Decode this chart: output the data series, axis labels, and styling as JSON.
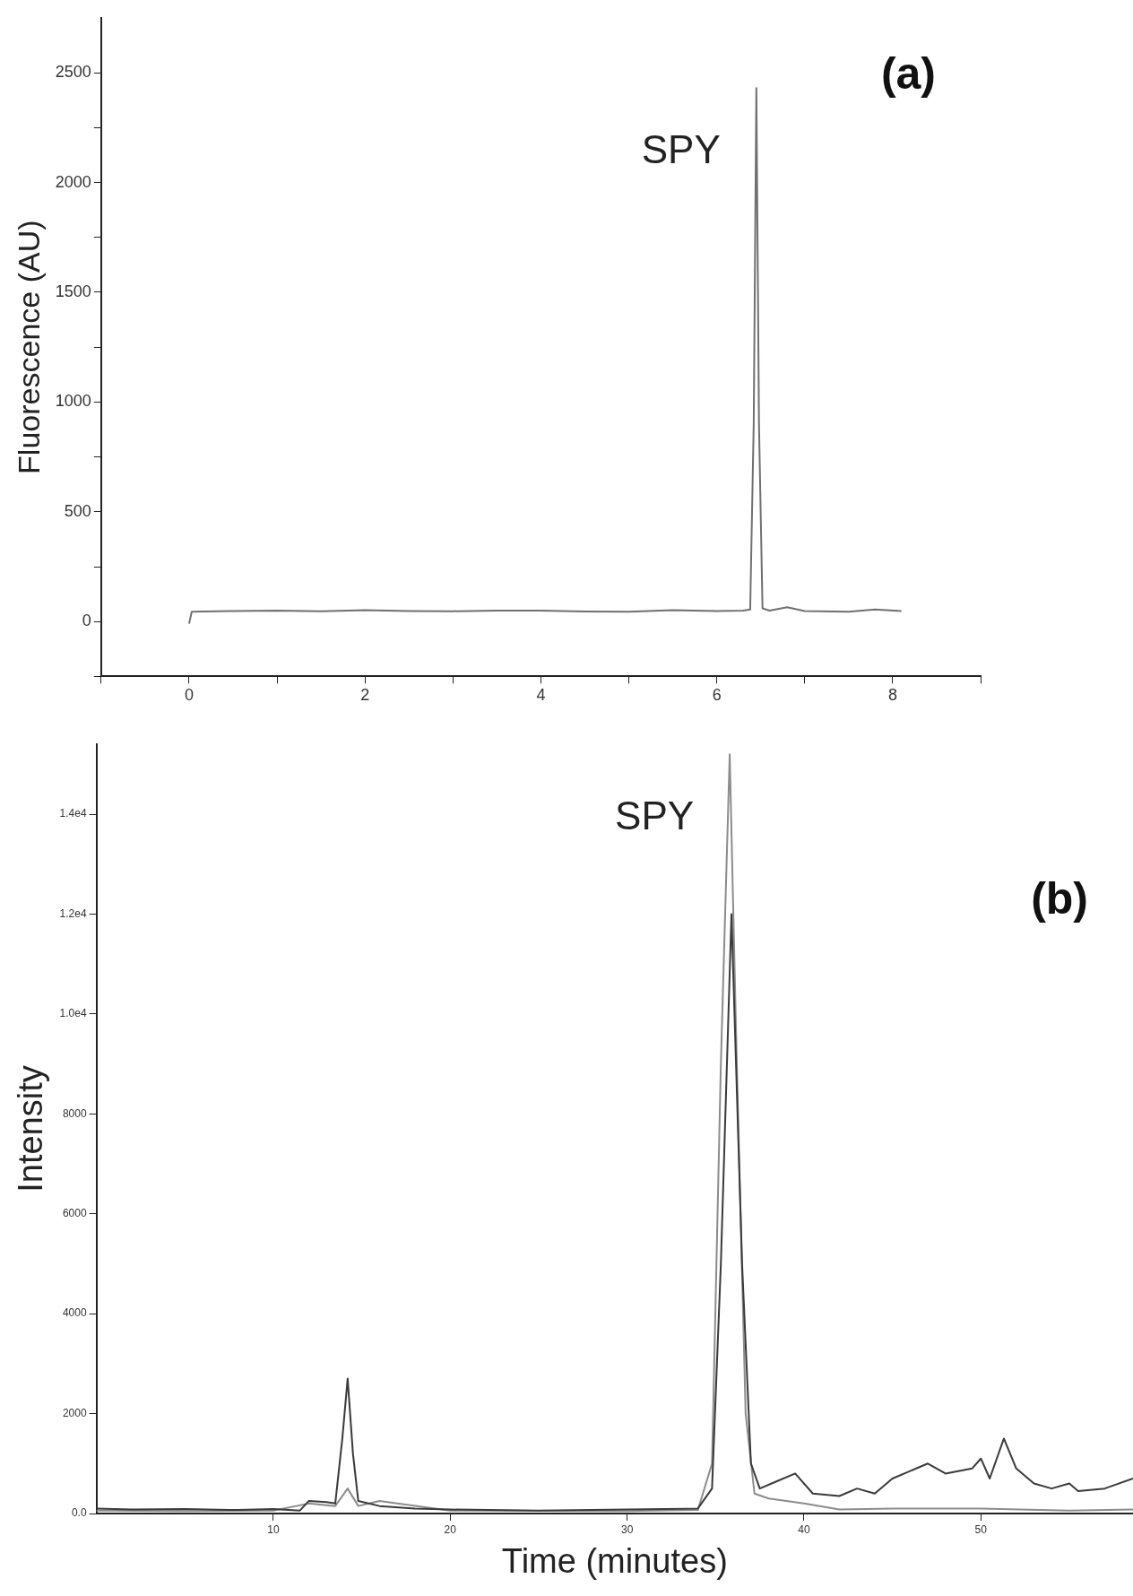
{
  "chart_data": [
    {
      "type": "line",
      "ylabel": "Fluorescence (AU)",
      "annotations": [
        {
          "text": "SPY",
          "x": 6.45,
          "y": 2430
        },
        "(a)"
      ],
      "xlim": [
        -1,
        9
      ],
      "xticks": [
        {
          "value": -1,
          "label": null
        },
        0,
        {
          "value": 1,
          "label": null
        },
        2,
        {
          "value": 3,
          "label": null
        },
        4,
        {
          "value": 5,
          "label": null
        },
        6,
        {
          "value": 7,
          "label": null
        },
        8,
        {
          "value": 9,
          "label": null
        }
      ],
      "ylim": [
        -250,
        2750
      ],
      "yticks": [
        {
          "value": -250,
          "label": null
        },
        0,
        {
          "value": 250,
          "label": null
        },
        500,
        {
          "value": 750,
          "label": null
        },
        1000,
        {
          "value": 1250,
          "label": null
        },
        1500,
        {
          "value": 1750,
          "label": null
        },
        2000,
        {
          "value": 2250,
          "label": null
        },
        2500
      ],
      "grid": false,
      "legend": false,
      "marker": "none",
      "line_style": "solid",
      "series": [
        {
          "color": "#707070",
          "x": [
            0,
            0.03,
            0.5,
            1,
            1.5,
            2,
            2.5,
            3,
            3.5,
            4,
            4.5,
            5,
            5.5,
            6,
            6.3,
            6.38,
            6.42,
            6.45,
            6.48,
            6.52,
            6.6,
            6.8,
            7,
            7.5,
            7.8,
            8.1
          ],
          "values": [
            -10,
            45,
            48,
            50,
            47,
            52,
            48,
            47,
            50,
            50,
            46,
            45,
            52,
            48,
            50,
            55,
            900,
            2430,
            900,
            60,
            50,
            65,
            48,
            45,
            55,
            48
          ]
        }
      ]
    },
    {
      "type": "line",
      "xlabel": "Time (minutes)",
      "ylabel": "Intensity",
      "annotations": [
        {
          "text": "SPY",
          "x": 35.8,
          "y": 15200
        },
        "(b)"
      ],
      "xlim": [
        0,
        58.6
      ],
      "xticks": [
        10,
        20,
        30,
        40,
        50
      ],
      "ylim": [
        0,
        15400
      ],
      "yticks": [
        {
          "value": 0,
          "label": "0.0"
        },
        2000,
        4000,
        6000,
        8000,
        {
          "value": 10000,
          "label": "1.0e4"
        },
        {
          "value": 12000,
          "label": "1.2e4"
        },
        {
          "value": 14000,
          "label": "1.4e4"
        }
      ],
      "grid": false,
      "legend": false,
      "marker": "none",
      "line_style": "solid",
      "series": [
        {
          "color": "#3a3a3a",
          "x": [
            0,
            2,
            5,
            8,
            10,
            11.5,
            12,
            13,
            13.5,
            13.9,
            14.2,
            14.5,
            14.8,
            16,
            18,
            20,
            25,
            30,
            34,
            34.8,
            35.3,
            35.9,
            36.5,
            37,
            37.5,
            38.5,
            39.5,
            40.5,
            42,
            43,
            44,
            45,
            47,
            48,
            49.5,
            50,
            50.5,
            51.3,
            52,
            53,
            54,
            55,
            55.5,
            57,
            58.6
          ],
          "values": [
            100,
            80,
            90,
            70,
            90,
            60,
            250,
            230,
            200,
            1500,
            2700,
            1200,
            250,
            150,
            100,
            80,
            60,
            80,
            100,
            500,
            5000,
            12000,
            5000,
            1000,
            500,
            650,
            800,
            400,
            350,
            500,
            400,
            700,
            1000,
            800,
            900,
            1100,
            700,
            1500,
            900,
            600,
            500,
            600,
            450,
            500,
            700
          ]
        },
        {
          "color": "#8c8c8c",
          "x": [
            0,
            5,
            10,
            12,
            13.5,
            14.2,
            14.8,
            16,
            17,
            20,
            30,
            34,
            34.8,
            35.3,
            35.8,
            36.2,
            36.7,
            37.2,
            38,
            40,
            42,
            45,
            50,
            55,
            58.6
          ],
          "values": [
            60,
            50,
            60,
            200,
            150,
            500,
            150,
            250,
            200,
            60,
            50,
            70,
            1000,
            9000,
            15200,
            9000,
            2000,
            400,
            300,
            200,
            80,
            100,
            100,
            60,
            80
          ]
        }
      ]
    }
  ]
}
